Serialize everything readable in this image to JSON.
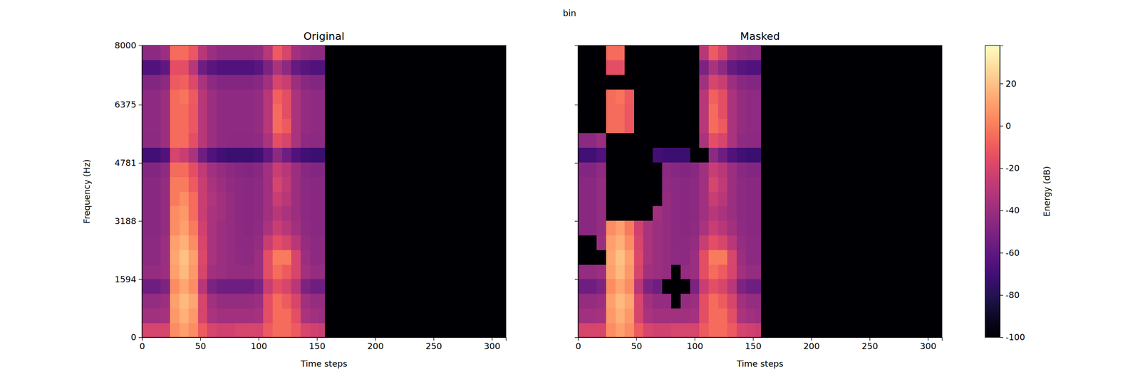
{
  "chart_data": {
    "type": "heatmap",
    "title": "bin",
    "x_label": "Time steps",
    "y_label": "Frequency (Hz)",
    "xlim": [
      0,
      312
    ],
    "ylim": [
      0,
      8000
    ],
    "xticks": [
      0,
      50,
      100,
      150,
      200,
      250,
      300
    ],
    "yticks": [
      0,
      1594,
      3188,
      4781,
      6375,
      8000
    ],
    "x_edges": [
      0,
      8,
      16,
      24,
      32,
      40,
      48,
      56,
      64,
      72,
      80,
      88,
      96,
      104,
      112,
      120,
      128,
      136,
      144,
      152,
      157,
      312
    ],
    "y_edges": [
      0,
      400,
      800,
      1200,
      1600,
      2000,
      2400,
      2800,
      3200,
      3600,
      4000,
      4400,
      4800,
      5200,
      5600,
      6000,
      6400,
      6800,
      7200,
      7600,
      8000
    ],
    "colorbar": {
      "label": "Energy (dB)",
      "range": [
        -100,
        38
      ],
      "ticks": [
        -100,
        -80,
        -60,
        -40,
        -20,
        0,
        20
      ]
    },
    "panels": [
      {
        "title": "Original",
        "cells": [
          [
            -20,
            -20,
            -20,
            5,
            10,
            5,
            -10,
            -20,
            -22,
            -22,
            -20,
            -20,
            -20,
            -10,
            -5,
            -5,
            -10,
            -20,
            -22,
            -25,
            -100
          ],
          [
            -38,
            -38,
            -36,
            8,
            15,
            8,
            -20,
            -35,
            -38,
            -38,
            -38,
            -38,
            -36,
            -15,
            -5,
            -5,
            -15,
            -35,
            -38,
            -40,
            -100
          ],
          [
            -42,
            -42,
            -40,
            10,
            18,
            12,
            -20,
            -38,
            -42,
            -42,
            -42,
            -42,
            -40,
            -15,
            -5,
            -10,
            -20,
            -38,
            -42,
            -42,
            -100
          ],
          [
            -55,
            -55,
            -50,
            5,
            12,
            5,
            -30,
            -50,
            -55,
            -55,
            -55,
            -55,
            -50,
            -25,
            -15,
            -20,
            -30,
            -50,
            -55,
            -55,
            -100
          ],
          [
            -42,
            -42,
            -40,
            10,
            18,
            8,
            -20,
            -38,
            -40,
            -42,
            -42,
            -42,
            -40,
            -15,
            -5,
            -10,
            -20,
            -38,
            -42,
            -42,
            -100
          ],
          [
            -45,
            -45,
            -40,
            12,
            20,
            10,
            -18,
            -35,
            -40,
            -42,
            -44,
            -45,
            -40,
            -15,
            0,
            0,
            -20,
            -40,
            -45,
            -45,
            -100
          ],
          [
            -45,
            -45,
            -40,
            10,
            15,
            5,
            -20,
            -35,
            -40,
            -42,
            -45,
            -45,
            -42,
            -25,
            -15,
            -20,
            -30,
            -42,
            -45,
            -45,
            -100
          ],
          [
            -46,
            -46,
            -42,
            5,
            10,
            0,
            -22,
            -35,
            -40,
            -42,
            -45,
            -46,
            -44,
            -35,
            -25,
            -30,
            -38,
            -44,
            -46,
            -46,
            -100
          ],
          [
            -46,
            -46,
            -42,
            5,
            8,
            -5,
            -25,
            -35,
            -38,
            -42,
            -45,
            -46,
            -45,
            -38,
            -30,
            -35,
            -40,
            -45,
            -46,
            -46,
            -100
          ],
          [
            -46,
            -46,
            -42,
            0,
            5,
            -5,
            -25,
            -33,
            -38,
            -42,
            -45,
            -46,
            -45,
            -38,
            -25,
            -30,
            -40,
            -45,
            -46,
            -46,
            -100
          ],
          [
            -46,
            -46,
            -42,
            0,
            0,
            -10,
            -25,
            -35,
            -40,
            -43,
            -45,
            -46,
            -45,
            -38,
            -20,
            -28,
            -40,
            -45,
            -46,
            -46,
            -100
          ],
          [
            -48,
            -48,
            -44,
            -5,
            -5,
            -15,
            -28,
            -38,
            -42,
            -45,
            -47,
            -48,
            -46,
            -38,
            -25,
            -30,
            -40,
            -46,
            -48,
            -48,
            -100
          ],
          [
            -70,
            -70,
            -65,
            -20,
            -25,
            -35,
            -55,
            -65,
            -70,
            -72,
            -72,
            -72,
            -70,
            -60,
            -45,
            -55,
            -65,
            -70,
            -72,
            -72,
            -100
          ],
          [
            -45,
            -45,
            -40,
            -5,
            -5,
            -15,
            -30,
            -40,
            -44,
            -45,
            -45,
            -45,
            -44,
            -35,
            -15,
            -20,
            -35,
            -44,
            -45,
            -45,
            -100
          ],
          [
            -44,
            -44,
            -40,
            -5,
            -5,
            -12,
            -30,
            -40,
            -44,
            -44,
            -44,
            -44,
            -42,
            -30,
            -5,
            -10,
            -35,
            -42,
            -44,
            -44,
            -100
          ],
          [
            -44,
            -44,
            -40,
            -5,
            -5,
            -12,
            -30,
            -40,
            -44,
            -44,
            -44,
            -44,
            -42,
            -30,
            -5,
            -15,
            -35,
            -42,
            -44,
            -44,
            -100
          ],
          [
            -44,
            -44,
            -40,
            -5,
            -2,
            -10,
            -30,
            -40,
            -44,
            -44,
            -44,
            -44,
            -42,
            -30,
            -8,
            -15,
            -35,
            -42,
            -44,
            -44,
            -100
          ],
          [
            -48,
            -48,
            -45,
            -10,
            -8,
            -18,
            -35,
            -45,
            -48,
            -48,
            -48,
            -48,
            -46,
            -38,
            -20,
            -25,
            -40,
            -46,
            -48,
            -48,
            -100
          ],
          [
            -65,
            -65,
            -60,
            -15,
            -15,
            -30,
            -55,
            -62,
            -65,
            -65,
            -65,
            -65,
            -62,
            -50,
            -35,
            -45,
            -58,
            -63,
            -65,
            -65,
            -100
          ],
          [
            -45,
            -45,
            -40,
            -5,
            -5,
            -12,
            -30,
            -40,
            -44,
            -44,
            -44,
            -44,
            -42,
            -30,
            -10,
            -20,
            -38,
            -42,
            -44,
            -44,
            -100
          ]
        ]
      },
      {
        "title": "Masked",
        "cells": [
          [
            -20,
            -20,
            -20,
            5,
            10,
            5,
            -10,
            -20,
            -22,
            -22,
            -20,
            -20,
            -20,
            -10,
            -5,
            -5,
            -10,
            -20,
            -22,
            -25,
            -100
          ],
          [
            -38,
            -38,
            -36,
            8,
            15,
            8,
            -20,
            -35,
            -38,
            -38,
            -38,
            -38,
            -36,
            -15,
            -5,
            -5,
            -15,
            -35,
            -38,
            -40,
            -100
          ],
          [
            -42,
            -42,
            -40,
            10,
            18,
            12,
            -20,
            -38,
            -42,
            -42,
            -100,
            -42,
            -40,
            -15,
            -5,
            -10,
            -20,
            -38,
            -42,
            -42,
            -100
          ],
          [
            -55,
            -55,
            -50,
            5,
            12,
            5,
            -30,
            -50,
            -55,
            -100,
            -100,
            -100,
            -50,
            -25,
            -15,
            -20,
            -30,
            -50,
            -55,
            -55,
            -100
          ],
          [
            -42,
            -42,
            -40,
            10,
            18,
            8,
            -20,
            -38,
            -40,
            -42,
            -100,
            -42,
            -40,
            -15,
            -5,
            -10,
            -20,
            -38,
            -42,
            -42,
            -100
          ],
          [
            -100,
            -100,
            -100,
            12,
            20,
            10,
            -18,
            -35,
            -40,
            -42,
            -44,
            -45,
            -40,
            -15,
            0,
            0,
            -20,
            -40,
            -45,
            -45,
            -100
          ],
          [
            -100,
            -100,
            -40,
            10,
            15,
            5,
            -20,
            -35,
            -40,
            -42,
            -45,
            -45,
            -42,
            -25,
            -15,
            -20,
            -30,
            -42,
            -45,
            -45,
            -100
          ],
          [
            -46,
            -46,
            -42,
            5,
            10,
            0,
            -22,
            -35,
            -40,
            -42,
            -45,
            -46,
            -44,
            -35,
            -25,
            -30,
            -38,
            -44,
            -46,
            -46,
            -100
          ],
          [
            -46,
            -46,
            -42,
            -100,
            -100,
            -100,
            -100,
            -100,
            -38,
            -42,
            -45,
            -46,
            -45,
            -38,
            -30,
            -35,
            -40,
            -45,
            -46,
            -46,
            -100
          ],
          [
            -46,
            -46,
            -42,
            -100,
            -100,
            -100,
            -100,
            -100,
            -100,
            -42,
            -45,
            -46,
            -45,
            -38,
            -25,
            -30,
            -40,
            -45,
            -46,
            -46,
            -100
          ],
          [
            -46,
            -46,
            -42,
            -100,
            -100,
            -100,
            -100,
            -100,
            -100,
            -43,
            -45,
            -46,
            -45,
            -38,
            -20,
            -28,
            -40,
            -45,
            -46,
            -46,
            -100
          ],
          [
            -48,
            -48,
            -44,
            -100,
            -100,
            -100,
            -100,
            -100,
            -100,
            -45,
            -47,
            -48,
            -46,
            -38,
            -25,
            -30,
            -40,
            -46,
            -48,
            -48,
            -100
          ],
          [
            -70,
            -70,
            -65,
            -100,
            -100,
            -100,
            -100,
            -100,
            -70,
            -72,
            -72,
            -72,
            -100,
            -100,
            -45,
            -55,
            -65,
            -70,
            -72,
            -72,
            -100
          ],
          [
            -45,
            -45,
            -40,
            -100,
            -100,
            -100,
            -100,
            -100,
            -100,
            -100,
            -100,
            -100,
            -100,
            -35,
            -15,
            -20,
            -35,
            -44,
            -45,
            -45,
            -100
          ],
          [
            -100,
            -100,
            -100,
            -5,
            -5,
            -12,
            -100,
            -100,
            -100,
            -100,
            -100,
            -100,
            -100,
            -30,
            -5,
            -10,
            -35,
            -42,
            -44,
            -44,
            -100
          ],
          [
            -100,
            -100,
            -100,
            -5,
            -5,
            -12,
            -100,
            -100,
            -100,
            -100,
            -100,
            -100,
            -100,
            -30,
            -5,
            -15,
            -35,
            -42,
            -44,
            -44,
            -100
          ],
          [
            -100,
            -100,
            -100,
            -5,
            -2,
            -10,
            -100,
            -100,
            -100,
            -100,
            -100,
            -100,
            -100,
            -30,
            -8,
            -15,
            -35,
            -42,
            -44,
            -44,
            -100
          ],
          [
            -100,
            -100,
            -100,
            -100,
            -100,
            -100,
            -100,
            -100,
            -100,
            -100,
            -100,
            -100,
            -100,
            -38,
            -20,
            -25,
            -40,
            -46,
            -48,
            -48,
            -100
          ],
          [
            -100,
            -100,
            -100,
            -15,
            -15,
            -100,
            -100,
            -100,
            -100,
            -100,
            -100,
            -100,
            -100,
            -50,
            -35,
            -45,
            -58,
            -63,
            -65,
            -65,
            -100
          ],
          [
            -100,
            -100,
            -100,
            -5,
            -5,
            -100,
            -100,
            -100,
            -100,
            -100,
            -100,
            -100,
            -100,
            -30,
            -10,
            -20,
            -38,
            -42,
            -44,
            -44,
            -100
          ]
        ]
      }
    ]
  }
}
